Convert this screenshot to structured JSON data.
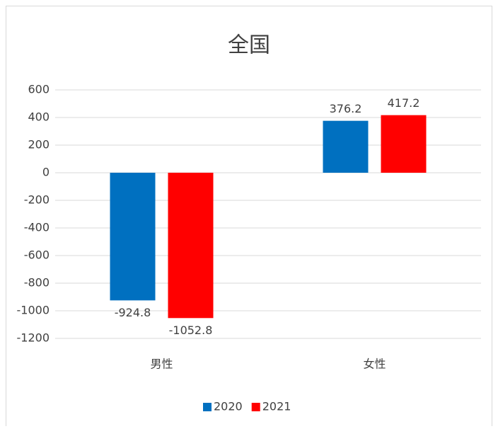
{
  "chart_data": {
    "type": "bar",
    "title": "全国",
    "categories": [
      "男性",
      "女性"
    ],
    "series": [
      {
        "name": "2020",
        "color": "#0070c0",
        "values": [
          -924.8,
          376.2
        ]
      },
      {
        "name": "2021",
        "color": "#ff0000",
        "values": [
          -1052.8,
          417.2
        ]
      }
    ],
    "ylim": [
      -1200,
      600
    ],
    "yticks": [
      -1200,
      -1000,
      -800,
      -600,
      -400,
      -200,
      0,
      200,
      400,
      600
    ],
    "grid": true,
    "legend": "bottom"
  }
}
